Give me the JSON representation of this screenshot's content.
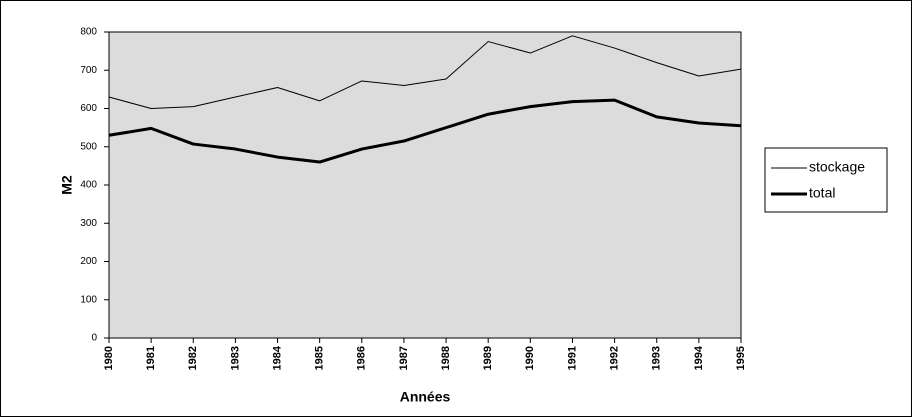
{
  "chart_data": {
    "type": "line",
    "x_label": "Années",
    "y_label": "M2",
    "categories": [
      "1980",
      "1981",
      "1982",
      "1983",
      "1984",
      "1985",
      "1986",
      "1987",
      "1988",
      "1989",
      "1990",
      "1991",
      "1992",
      "1993",
      "1994",
      "1995"
    ],
    "series": [
      {
        "name": "stockage",
        "color": "#000000",
        "width": 1,
        "values": [
          630,
          600,
          605,
          630,
          655,
          620,
          672,
          660,
          677,
          775,
          745,
          790,
          758,
          720,
          685,
          703
        ]
      },
      {
        "name": "total",
        "color": "#000000",
        "width": 3,
        "values": [
          530,
          548,
          507,
          494,
          473,
          460,
          494,
          515,
          550,
          585,
          605,
          618,
          622,
          578,
          562,
          555
        ]
      }
    ],
    "ylim": [
      0,
      800
    ],
    "yticks": [
      0,
      100,
      200,
      300,
      400,
      500,
      600,
      700,
      800
    ],
    "grid": false,
    "legend": "right",
    "plot_background": "#dcdcdc"
  }
}
